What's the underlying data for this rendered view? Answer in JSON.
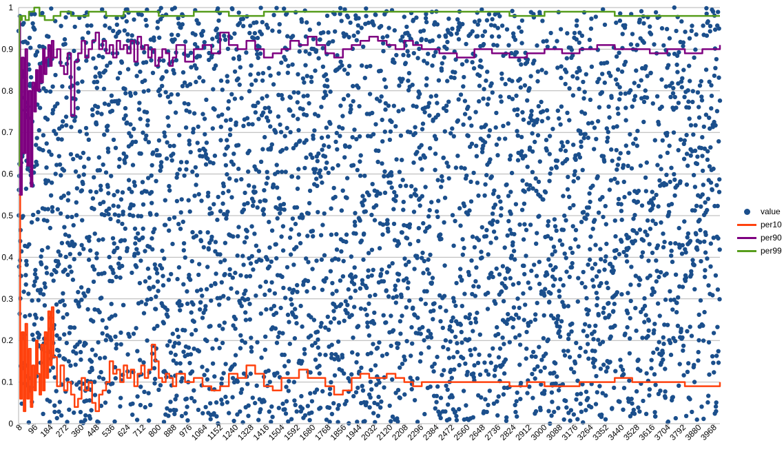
{
  "chart_data": {
    "type": "scatter",
    "title": "",
    "xlabel": "",
    "ylabel": "",
    "x_range": [
      1,
      4000
    ],
    "ylim": [
      0,
      1
    ],
    "y_ticks": [
      "0",
      "0.1",
      "0.2",
      "0.3",
      "0.4",
      "0.5",
      "0.6",
      "0.7",
      "0.8",
      "0.9",
      "1"
    ],
    "x_tick_labels": [
      "8",
      "96",
      "184",
      "272",
      "360",
      "448",
      "536",
      "624",
      "712",
      "800",
      "888",
      "976",
      "1064",
      "1152",
      "1240",
      "1328",
      "1416",
      "1504",
      "1592",
      "1680",
      "1768",
      "1856",
      "1944",
      "2032",
      "2120",
      "2208",
      "2296",
      "2384",
      "2472",
      "2560",
      "2648",
      "2736",
      "2824",
      "2912",
      "3000",
      "3088",
      "3176",
      "3264",
      "3352",
      "3440",
      "3528",
      "3616",
      "3704",
      "3792",
      "3880",
      "3968"
    ],
    "grid": "horizontal",
    "legend_position": "right",
    "value_points": {
      "count": 4000,
      "distribution": "uniform random between 0 and 1"
    },
    "series": [
      {
        "name": "value",
        "kind": "points",
        "color": "#1b4f8c"
      },
      {
        "name": "per10",
        "kind": "line",
        "color": "#ff420e",
        "x": [
          1,
          10,
          20,
          30,
          40,
          50,
          60,
          70,
          80,
          90,
          100,
          110,
          120,
          130,
          140,
          150,
          160,
          170,
          180,
          190,
          200,
          220,
          240,
          260,
          280,
          300,
          320,
          340,
          360,
          380,
          400,
          420,
          440,
          460,
          480,
          500,
          520,
          540,
          560,
          580,
          600,
          620,
          640,
          660,
          680,
          700,
          720,
          740,
          760,
          780,
          800,
          820,
          840,
          860,
          880,
          900,
          950,
          1000,
          1050,
          1100,
          1150,
          1200,
          1250,
          1300,
          1350,
          1400,
          1450,
          1500,
          1550,
          1600,
          1650,
          1700,
          1750,
          1800,
          1850,
          1900,
          1950,
          2000,
          2050,
          2100,
          2150,
          2200,
          2250,
          2300,
          2400,
          2500,
          2600,
          2700,
          2800,
          2900,
          3000,
          3100,
          3200,
          3300,
          3400,
          3500,
          3600,
          3700,
          3800,
          3900,
          4000
        ],
        "y": [
          0.55,
          0.06,
          0.22,
          0.03,
          0.24,
          0.06,
          0.18,
          0.04,
          0.14,
          0.08,
          0.2,
          0.12,
          0.07,
          0.19,
          0.08,
          0.22,
          0.11,
          0.27,
          0.14,
          0.28,
          0.16,
          0.09,
          0.14,
          0.08,
          0.1,
          0.07,
          0.04,
          0.06,
          0.11,
          0.08,
          0.1,
          0.05,
          0.03,
          0.07,
          0.08,
          0.1,
          0.15,
          0.12,
          0.13,
          0.1,
          0.14,
          0.11,
          0.13,
          0.09,
          0.12,
          0.14,
          0.11,
          0.13,
          0.19,
          0.15,
          0.11,
          0.1,
          0.12,
          0.11,
          0.09,
          0.12,
          0.1,
          0.11,
          0.09,
          0.08,
          0.09,
          0.12,
          0.11,
          0.14,
          0.12,
          0.09,
          0.08,
          0.11,
          0.11,
          0.13,
          0.11,
          0.11,
          0.09,
          0.07,
          0.08,
          0.11,
          0.12,
          0.11,
          0.11,
          0.12,
          0.11,
          0.1,
          0.09,
          0.1,
          0.1,
          0.1,
          0.1,
          0.1,
          0.09,
          0.1,
          0.09,
          0.09,
          0.1,
          0.1,
          0.11,
          0.1,
          0.1,
          0.1,
          0.09,
          0.09,
          0.1
        ]
      },
      {
        "name": "per90",
        "kind": "line",
        "color": "#7e0080",
        "x": [
          1,
          10,
          20,
          30,
          40,
          50,
          60,
          70,
          80,
          90,
          100,
          110,
          120,
          130,
          140,
          150,
          160,
          170,
          180,
          190,
          200,
          220,
          240,
          260,
          280,
          300,
          320,
          340,
          360,
          380,
          400,
          420,
          440,
          460,
          480,
          500,
          520,
          540,
          560,
          580,
          600,
          620,
          640,
          660,
          680,
          700,
          720,
          740,
          760,
          780,
          800,
          820,
          840,
          860,
          880,
          900,
          950,
          1000,
          1050,
          1100,
          1150,
          1200,
          1250,
          1300,
          1350,
          1400,
          1450,
          1500,
          1550,
          1600,
          1650,
          1700,
          1750,
          1800,
          1850,
          1900,
          1950,
          2000,
          2050,
          2100,
          2150,
          2200,
          2250,
          2300,
          2400,
          2500,
          2600,
          2700,
          2800,
          2900,
          3000,
          3100,
          3200,
          3300,
          3400,
          3500,
          3600,
          3700,
          3800,
          3900,
          4000
        ],
        "y": [
          0.97,
          0.55,
          0.88,
          0.65,
          0.9,
          0.62,
          0.8,
          0.57,
          0.82,
          0.75,
          0.85,
          0.8,
          0.86,
          0.82,
          0.9,
          0.84,
          0.88,
          0.91,
          0.86,
          0.92,
          0.88,
          0.9,
          0.86,
          0.84,
          0.89,
          0.74,
          0.87,
          0.89,
          0.92,
          0.88,
          0.9,
          0.92,
          0.94,
          0.9,
          0.92,
          0.89,
          0.91,
          0.88,
          0.92,
          0.9,
          0.91,
          0.89,
          0.92,
          0.87,
          0.93,
          0.9,
          0.91,
          0.88,
          0.9,
          0.86,
          0.88,
          0.9,
          0.89,
          0.86,
          0.88,
          0.91,
          0.87,
          0.9,
          0.91,
          0.89,
          0.94,
          0.91,
          0.9,
          0.92,
          0.9,
          0.88,
          0.89,
          0.9,
          0.92,
          0.91,
          0.93,
          0.91,
          0.89,
          0.88,
          0.9,
          0.91,
          0.92,
          0.93,
          0.92,
          0.91,
          0.9,
          0.92,
          0.91,
          0.9,
          0.89,
          0.88,
          0.9,
          0.89,
          0.88,
          0.89,
          0.9,
          0.89,
          0.9,
          0.91,
          0.9,
          0.9,
          0.89,
          0.9,
          0.89,
          0.9,
          0.91
        ]
      },
      {
        "name": "per99",
        "kind": "line",
        "color": "#579d1c",
        "x": [
          1,
          5,
          10,
          20,
          40,
          60,
          90,
          120,
          150,
          200,
          240,
          300,
          400,
          500,
          600,
          700,
          800,
          1000,
          1200,
          1400,
          1600,
          1800,
          2000,
          2200,
          2400,
          2600,
          2800,
          3000,
          3200,
          3400,
          3600,
          3800,
          4000
        ],
        "y": [
          0.62,
          0.98,
          0.97,
          0.98,
          0.97,
          0.99,
          1.0,
          0.98,
          0.97,
          0.98,
          0.99,
          0.98,
          0.99,
          0.98,
          0.99,
          0.99,
          0.98,
          0.99,
          0.98,
          0.99,
          0.99,
          0.99,
          0.99,
          0.99,
          0.99,
          0.99,
          0.98,
          0.99,
          0.99,
          0.98,
          0.98,
          0.98,
          0.98
        ]
      }
    ]
  }
}
